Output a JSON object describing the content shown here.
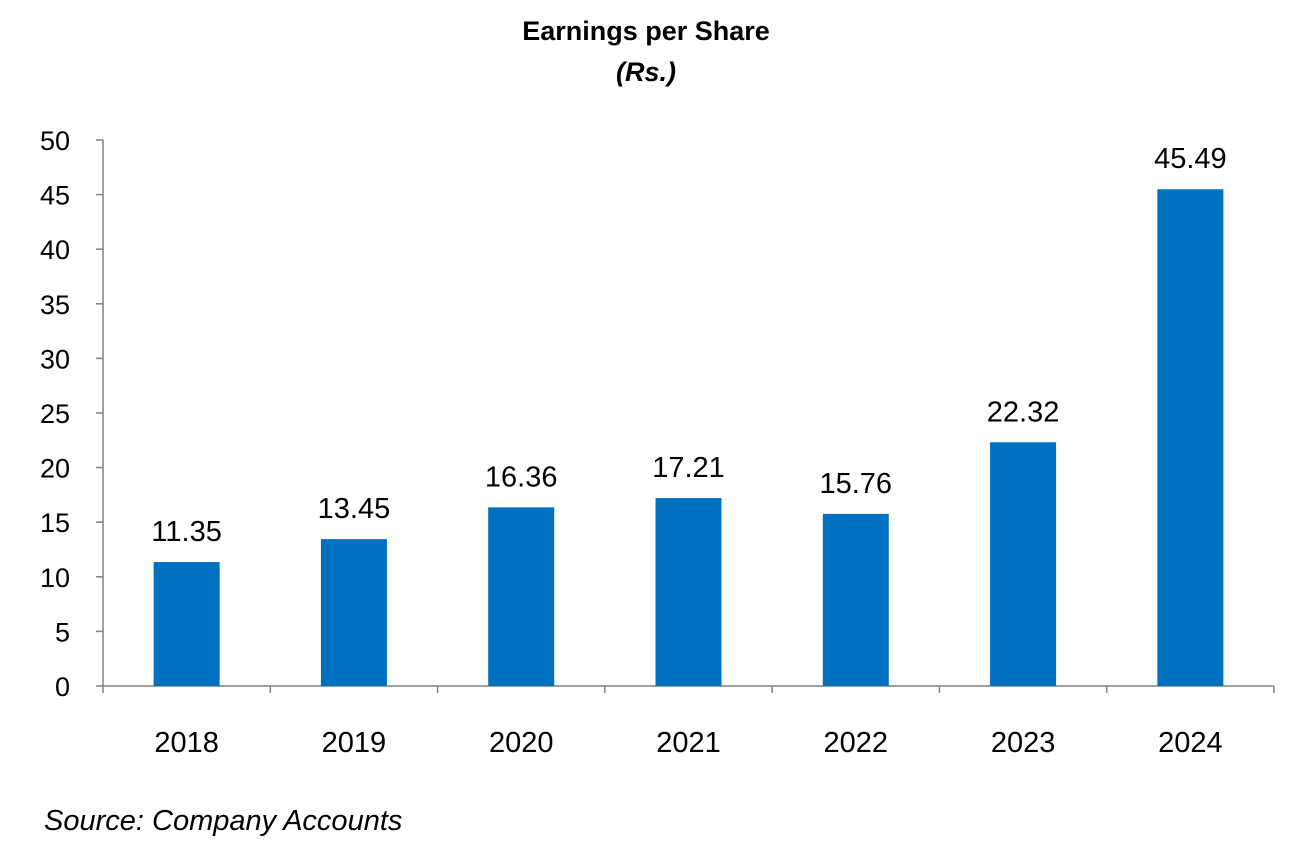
{
  "chart_data": {
    "type": "bar",
    "title": "Earnings per Share",
    "subtitle": "(Rs.)",
    "categories": [
      "2018",
      "2019",
      "2020",
      "2021",
      "2022",
      "2023",
      "2024"
    ],
    "values": [
      11.35,
      13.45,
      16.36,
      17.21,
      15.76,
      22.32,
      45.49
    ],
    "value_labels": [
      "11.35",
      "13.45",
      "16.36",
      "17.21",
      "15.76",
      "22.32",
      "45.49"
    ],
    "xlabel": "",
    "ylabel": "",
    "ylim": [
      0,
      50
    ],
    "yticks": [
      "0",
      "5",
      "10",
      "15",
      "20",
      "25",
      "30",
      "35",
      "40",
      "45",
      "50"
    ],
    "grid": false,
    "legend": "none",
    "bar_color": "#0070C0"
  },
  "footer": {
    "source": "Source: Company Accounts"
  }
}
